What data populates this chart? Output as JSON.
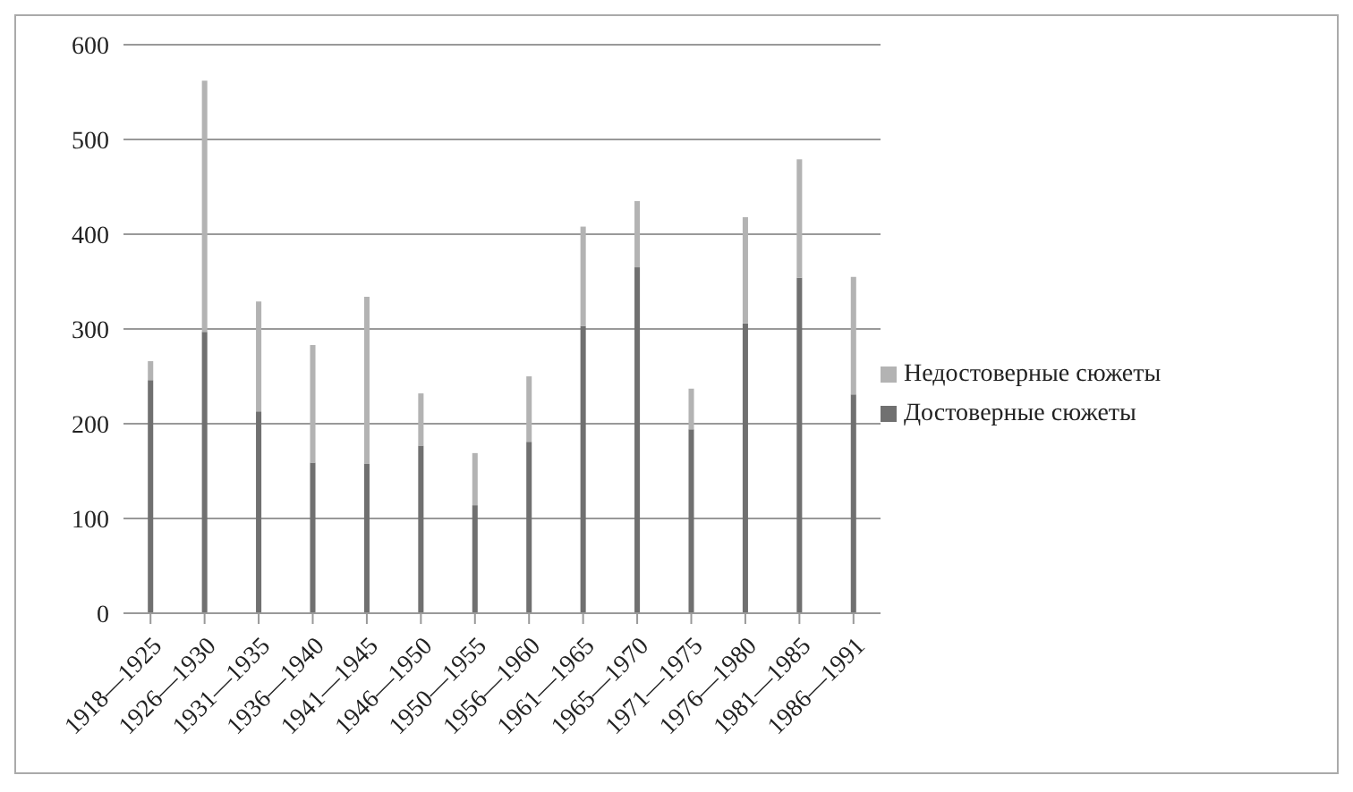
{
  "chart_data": {
    "type": "bar",
    "stacked": true,
    "categories": [
      "1918—1925",
      "1926—1930",
      "1931—1935",
      "1936—1940",
      "1941—1945",
      "1946—1950",
      "1950—1955",
      "1956—1960",
      "1961—1965",
      "1965—1970",
      "1971—1975",
      "1976—1980",
      "1981—1985",
      "1986—1991"
    ],
    "series": [
      {
        "name": "Достоверные сюжеты",
        "color": "#707070",
        "values": [
          246,
          297,
          213,
          159,
          158,
          177,
          114,
          181,
          303,
          365,
          194,
          306,
          354,
          231
        ]
      },
      {
        "name": "Недостоверные сюжеты",
        "color": "#b3b3b3",
        "values": [
          20,
          265,
          116,
          124,
          176,
          55,
          55,
          69,
          105,
          70,
          43,
          112,
          125,
          124
        ]
      }
    ],
    "ylim": [
      0,
      600
    ],
    "yticks": [
      0,
      100,
      200,
      300,
      400,
      500,
      600
    ],
    "grid": "y",
    "legend": "right"
  }
}
